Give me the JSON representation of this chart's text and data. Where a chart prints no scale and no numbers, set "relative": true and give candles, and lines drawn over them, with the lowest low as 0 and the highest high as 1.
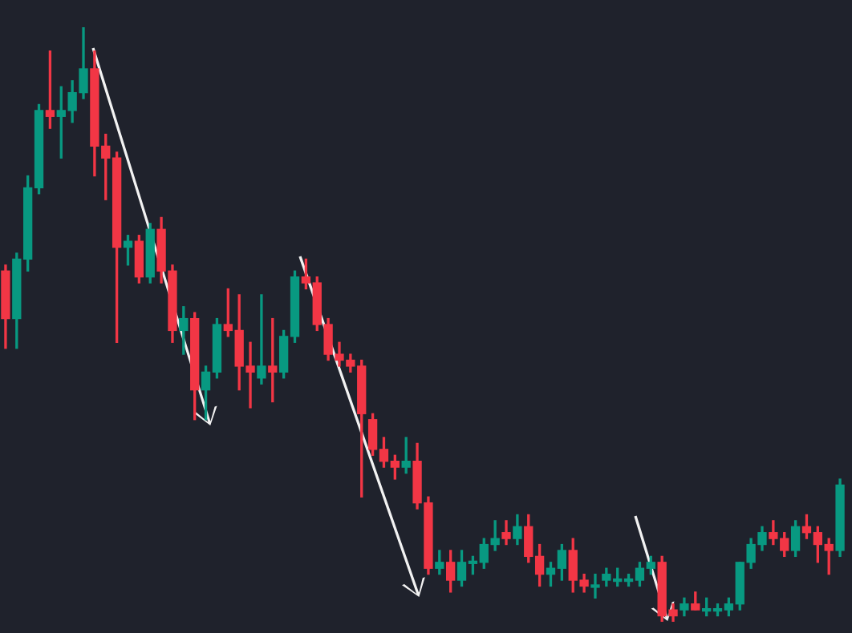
{
  "chart_data": {
    "type": "candlestick",
    "relative": true,
    "categories": [
      null,
      null,
      null,
      null,
      null,
      null,
      null,
      null,
      null,
      null,
      null,
      null,
      null,
      null,
      null,
      null,
      null,
      null,
      null,
      null,
      null,
      null,
      null,
      null,
      null,
      null,
      null,
      null,
      null,
      null,
      null,
      null,
      null,
      null,
      null,
      null,
      null,
      null,
      null,
      null,
      null,
      null,
      null,
      null,
      null,
      null,
      null,
      null,
      null,
      null,
      null,
      null,
      null,
      null,
      null,
      null,
      null,
      null,
      null,
      null,
      null,
      null,
      null,
      null,
      null,
      null,
      null,
      null,
      null,
      null,
      null,
      null,
      null,
      null,
      null,
      null
    ],
    "ohlc": [
      [
        0.59,
        0.6,
        0.46,
        0.51
      ],
      [
        0.51,
        0.62,
        0.46,
        0.61
      ],
      [
        0.61,
        0.75,
        0.59,
        0.73
      ],
      [
        0.73,
        0.87,
        0.72,
        0.86
      ],
      [
        0.86,
        0.96,
        0.83,
        0.85
      ],
      [
        0.85,
        0.9,
        0.78,
        0.86
      ],
      [
        0.86,
        0.91,
        0.84,
        0.89
      ],
      [
        0.89,
        1,
        0.88,
        0.93
      ],
      [
        0.93,
        0.96,
        0.75,
        0.8
      ],
      [
        0.8,
        0.82,
        0.71,
        0.78
      ],
      [
        0.78,
        0.79,
        0.47,
        0.63
      ],
      [
        0.63,
        0.65,
        0.6,
        0.64
      ],
      [
        0.64,
        0.65,
        0.57,
        0.58
      ],
      [
        0.58,
        0.67,
        0.57,
        0.66
      ],
      [
        0.66,
        0.68,
        0.57,
        0.59
      ],
      [
        0.59,
        0.6,
        0.47,
        0.49
      ],
      [
        0.49,
        0.53,
        0.45,
        0.51
      ],
      [
        0.51,
        0.52,
        0.34,
        0.39
      ],
      [
        0.39,
        0.43,
        0.34,
        0.42
      ],
      [
        0.42,
        0.51,
        0.41,
        0.5
      ],
      [
        0.5,
        0.56,
        0.48,
        0.49
      ],
      [
        0.49,
        0.55,
        0.39,
        0.43
      ],
      [
        0.43,
        0.47,
        0.36,
        0.42
      ],
      [
        0.41,
        0.55,
        0.4,
        0.43
      ],
      [
        0.43,
        0.51,
        0.37,
        0.42
      ],
      [
        0.42,
        0.49,
        0.41,
        0.48
      ],
      [
        0.48,
        0.59,
        0.47,
        0.58
      ],
      [
        0.58,
        0.61,
        0.56,
        0.57
      ],
      [
        0.57,
        0.58,
        0.49,
        0.5
      ],
      [
        0.5,
        0.51,
        0.44,
        0.45
      ],
      [
        0.45,
        0.47,
        0.43,
        0.44
      ],
      [
        0.44,
        0.45,
        0.42,
        0.43
      ],
      [
        0.43,
        0.44,
        0.21,
        0.35
      ],
      [
        0.34,
        0.35,
        0.28,
        0.29
      ],
      [
        0.29,
        0.31,
        0.26,
        0.27
      ],
      [
        0.27,
        0.28,
        0.24,
        0.26
      ],
      [
        0.26,
        0.31,
        0.25,
        0.27
      ],
      [
        0.27,
        0.3,
        0.19,
        0.2
      ],
      [
        0.2,
        0.21,
        0.08,
        0.09
      ],
      [
        0.09,
        0.12,
        0.08,
        0.1
      ],
      [
        0.1,
        0.12,
        0.05,
        0.07
      ],
      [
        0.07,
        0.12,
        0.06,
        0.1
      ],
      [
        0.1,
        0.11,
        0.08,
        0.1
      ],
      [
        0.1,
        0.14,
        0.09,
        0.13
      ],
      [
        0.13,
        0.17,
        0.12,
        0.14
      ],
      [
        0.15,
        0.17,
        0.13,
        0.14
      ],
      [
        0.14,
        0.18,
        0.13,
        0.16
      ],
      [
        0.16,
        0.18,
        0.1,
        0.11
      ],
      [
        0.11,
        0.13,
        0.06,
        0.08
      ],
      [
        0.08,
        0.1,
        0.06,
        0.09
      ],
      [
        0.09,
        0.13,
        0.07,
        0.12
      ],
      [
        0.12,
        0.14,
        0.05,
        0.07
      ],
      [
        0.07,
        0.08,
        0.05,
        0.06
      ],
      [
        0.06,
        0.08,
        0.04,
        0.06
      ],
      [
        0.07,
        0.09,
        0.06,
        0.08
      ],
      [
        0.07,
        0.09,
        0.06,
        0.07
      ],
      [
        0.07,
        0.08,
        0.06,
        0.07
      ],
      [
        0.07,
        0.1,
        0.06,
        0.09
      ],
      [
        0.09,
        0.11,
        0.08,
        0.1
      ],
      [
        0.1,
        0.11,
        0,
        0.01
      ],
      [
        0.02,
        0.03,
        0,
        0.01
      ],
      [
        0.02,
        0.04,
        0.01,
        0.03
      ],
      [
        0.03,
        0.05,
        0.02,
        0.02
      ],
      [
        0.02,
        0.04,
        0.01,
        0.02
      ],
      [
        0.02,
        0.03,
        0.01,
        0.02
      ],
      [
        0.02,
        0.04,
        0.01,
        0.03
      ],
      [
        0.03,
        0.1,
        0.02,
        0.1
      ],
      [
        0.1,
        0.14,
        0.09,
        0.13
      ],
      [
        0.13,
        0.16,
        0.12,
        0.15
      ],
      [
        0.15,
        0.17,
        0.13,
        0.14
      ],
      [
        0.14,
        0.15,
        0.11,
        0.12
      ],
      [
        0.12,
        0.17,
        0.11,
        0.16
      ],
      [
        0.16,
        0.18,
        0.14,
        0.15
      ],
      [
        0.15,
        0.16,
        0.1,
        0.13
      ],
      [
        0.13,
        0.14,
        0.08,
        0.12
      ],
      [
        0.12,
        0.24,
        0.11,
        0.23
      ]
    ]
  }
}
